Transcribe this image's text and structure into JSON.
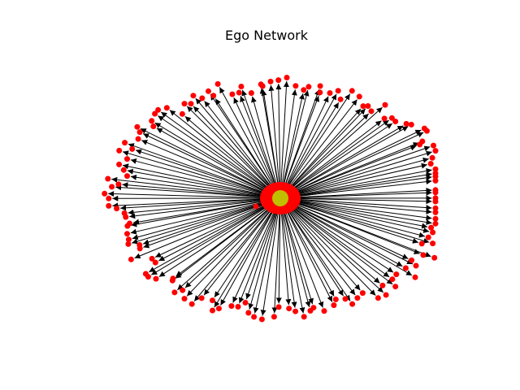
{
  "title": "Ego Network",
  "colors": {
    "edge": "#000000",
    "node": "#ff0000",
    "ego_node": "#bfbf00",
    "background": "#ffffff"
  },
  "graph": {
    "type": "directed-star",
    "ego": "center",
    "neighbor_count": 140
  }
}
